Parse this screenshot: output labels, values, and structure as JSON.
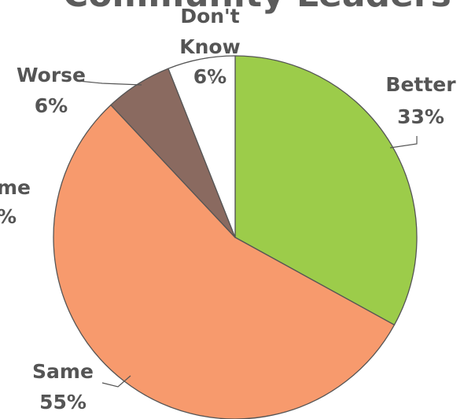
{
  "chart_data": {
    "type": "pie",
    "title": "Community Leaders",
    "slices": [
      {
        "label": "Better",
        "value": 33,
        "value_label": "33%",
        "color": "#9ccc4a"
      },
      {
        "label": "Same",
        "value": 55,
        "value_label": "55%",
        "color": "#f79a6d"
      },
      {
        "label": "Worse",
        "value": 6,
        "value_label": "6%",
        "color": "#8a6a60"
      },
      {
        "label": "Don't Know",
        "value": 6,
        "value_label": "6%",
        "color": "#ffffff"
      }
    ],
    "cropped_label_fragments": [
      "me",
      "%"
    ]
  }
}
